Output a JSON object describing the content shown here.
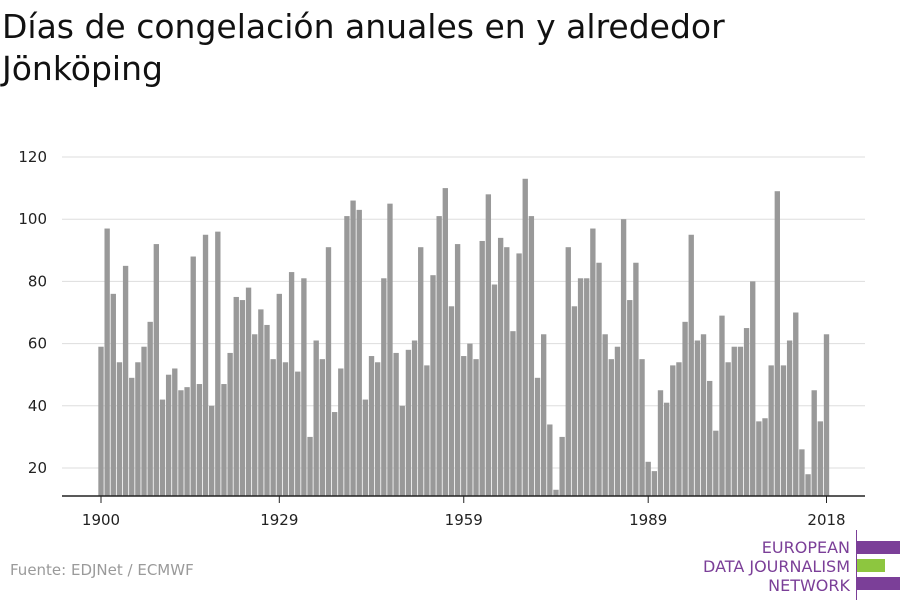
{
  "title": "Días de congelación anuales en y alrededor Jönköping",
  "source": "Fuente: EDJNet / ECMWF",
  "logo": {
    "line1": "EUROPEAN",
    "line2": "DATA JOURNALISM",
    "line3": "NETWORK",
    "colors": {
      "purple": "#7b3f98",
      "green": "#8dc63f"
    }
  },
  "chart_data": {
    "type": "bar",
    "bar_color": "#999999",
    "x_ticks": [
      "1900",
      "1929",
      "1959",
      "1989",
      "2018"
    ],
    "y_ticks": [
      "20",
      "40",
      "60",
      "80",
      "100",
      "120"
    ],
    "ylim": [
      11,
      120
    ],
    "grid": true,
    "x": [
      1900,
      1901,
      1902,
      1903,
      1904,
      1905,
      1906,
      1907,
      1908,
      1909,
      1910,
      1911,
      1912,
      1913,
      1914,
      1915,
      1916,
      1917,
      1918,
      1919,
      1920,
      1921,
      1922,
      1923,
      1924,
      1925,
      1926,
      1927,
      1928,
      1929,
      1930,
      1931,
      1932,
      1933,
      1934,
      1935,
      1936,
      1937,
      1938,
      1939,
      1940,
      1941,
      1942,
      1943,
      1944,
      1945,
      1946,
      1947,
      1948,
      1949,
      1950,
      1951,
      1952,
      1953,
      1954,
      1955,
      1956,
      1957,
      1958,
      1959,
      1960,
      1961,
      1962,
      1963,
      1964,
      1965,
      1966,
      1967,
      1968,
      1969,
      1970,
      1971,
      1972,
      1973,
      1974,
      1975,
      1976,
      1977,
      1978,
      1979,
      1980,
      1981,
      1982,
      1983,
      1984,
      1985,
      1986,
      1987,
      1988,
      1989,
      1990,
      1991,
      1992,
      1993,
      1994,
      1995,
      1996,
      1997,
      1998,
      1999,
      2000,
      2001,
      2002,
      2003,
      2004,
      2005,
      2006,
      2007,
      2008,
      2009,
      2010,
      2011,
      2012,
      2013,
      2014,
      2015,
      2016,
      2017,
      2018
    ],
    "values": [
      59,
      97,
      76,
      54,
      85,
      49,
      54,
      59,
      67,
      92,
      42,
      50,
      52,
      45,
      46,
      88,
      47,
      95,
      40,
      96,
      47,
      57,
      75,
      74,
      78,
      63,
      71,
      66,
      55,
      76,
      54,
      83,
      51,
      81,
      30,
      61,
      55,
      91,
      38,
      52,
      101,
      106,
      103,
      42,
      56,
      54,
      81,
      105,
      57,
      40,
      58,
      61,
      91,
      53,
      82,
      101,
      110,
      72,
      92,
      56,
      60,
      55,
      93,
      108,
      79,
      94,
      91,
      64,
      89,
      113,
      101,
      49,
      63,
      34,
      13,
      30,
      91,
      72,
      81,
      81,
      97,
      86,
      63,
      55,
      59,
      100,
      74,
      86,
      55,
      22,
      19,
      45,
      41,
      53,
      54,
      67,
      95,
      61,
      63,
      48,
      32,
      69,
      54,
      59,
      59,
      65,
      80,
      35,
      36,
      53,
      109,
      53,
      61,
      70,
      26,
      18,
      45,
      35,
      63
    ]
  }
}
